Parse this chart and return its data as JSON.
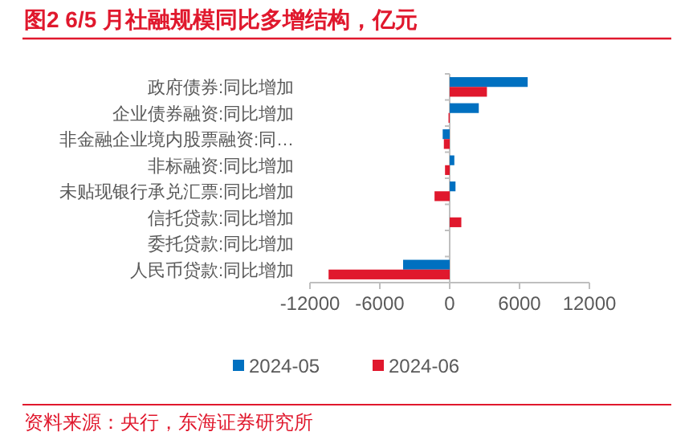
{
  "chart_data": {
    "type": "bar",
    "orientation": "horizontal",
    "title": "图2  6/5 月社融规模同比多增结构，亿元",
    "categories": [
      "政府债券:同比增加",
      "企业债券融资:同比增加",
      "非金融企业境内股票融资:同…",
      "非标融资:同比增加",
      "未贴现银行承兑汇票:同比增加",
      "信托贷款:同比增加",
      "委托贷款:同比增加",
      "人民币贷款:同比增加"
    ],
    "series": [
      {
        "name": "2024-05",
        "color": "#0070c0",
        "values": [
          6700,
          2500,
          -600,
          400,
          500,
          0,
          0,
          -4000
        ]
      },
      {
        "name": "2024-06",
        "color": "#e0182d",
        "values": [
          3200,
          -100,
          -500,
          -400,
          -1300,
          1000,
          0,
          -10400
        ]
      }
    ],
    "xlim": [
      -12000,
      12000
    ],
    "xticks": [
      -12000,
      -6000,
      0,
      6000,
      12000
    ],
    "legend": "bottom",
    "annotations": [
      "资料来源：央行，东海证券研究所"
    ]
  }
}
